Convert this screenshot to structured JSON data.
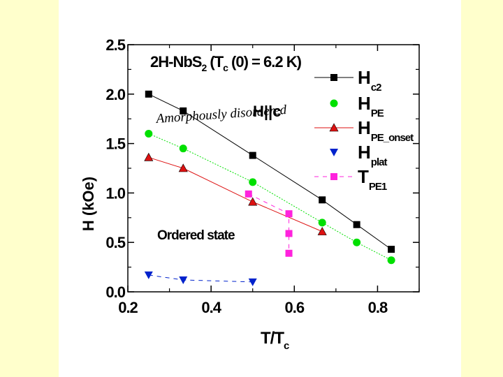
{
  "chart_data": {
    "type": "scatter",
    "title": "2H-NbS2 (Tc (0) = 6.2 K)",
    "title_parts": {
      "a": "2H-NbS",
      "b": "2",
      "c": " (T",
      "d": "c",
      "e": " (0) = 6.2 K)"
    },
    "xlabel": "T/T",
    "xlabel_sub": "c",
    "ylabel": "H (kOe)",
    "xlim": [
      0.2,
      0.9
    ],
    "ylim": [
      0.0,
      2.5
    ],
    "x_ticks": [
      "0.2",
      "0.4",
      "0.6",
      "0.8"
    ],
    "y_ticks": [
      "0.0",
      "0.5",
      "1.0",
      "1.5",
      "2.0",
      "2.5"
    ],
    "annotations": {
      "disordered": "Amorphously disordered",
      "field": "H||c",
      "ordered": "Ordered state"
    },
    "series": [
      {
        "name": "Hc2",
        "main": "H",
        "sub": "c2",
        "marker": "square",
        "color": "#000000",
        "line": "solid",
        "x": [
          0.25,
          0.333,
          0.5,
          0.667,
          0.75,
          0.833
        ],
        "y": [
          2.0,
          1.83,
          1.38,
          0.93,
          0.68,
          0.43
        ]
      },
      {
        "name": "HPE",
        "main": "H",
        "sub": "PE",
        "marker": "circle",
        "color": "#00e000",
        "line": "dotted",
        "x": [
          0.25,
          0.333,
          0.5,
          0.667,
          0.75,
          0.833
        ],
        "y": [
          1.6,
          1.45,
          1.11,
          0.7,
          0.5,
          0.32
        ]
      },
      {
        "name": "HPE_onset",
        "main": "H",
        "sub": "PE_onset",
        "marker": "triangle-up",
        "color": "#dd1111",
        "line": "solid",
        "x": [
          0.25,
          0.333,
          0.5,
          0.667
        ],
        "y": [
          1.36,
          1.25,
          0.91,
          0.61
        ]
      },
      {
        "name": "Hplat",
        "main": "H",
        "sub": "plat",
        "marker": "triangle-down",
        "color": "#0022cc",
        "line": "dashed",
        "x": [
          0.25,
          0.333,
          0.5
        ],
        "y": [
          0.17,
          0.12,
          0.1
        ]
      },
      {
        "name": "TPE1",
        "main": "T",
        "sub": "PE1",
        "marker": "square",
        "color": "#ff22dd",
        "line": "dashed",
        "x": [
          0.49,
          0.587,
          0.587,
          0.587
        ],
        "y": [
          0.99,
          0.79,
          0.59,
          0.39
        ]
      }
    ]
  }
}
